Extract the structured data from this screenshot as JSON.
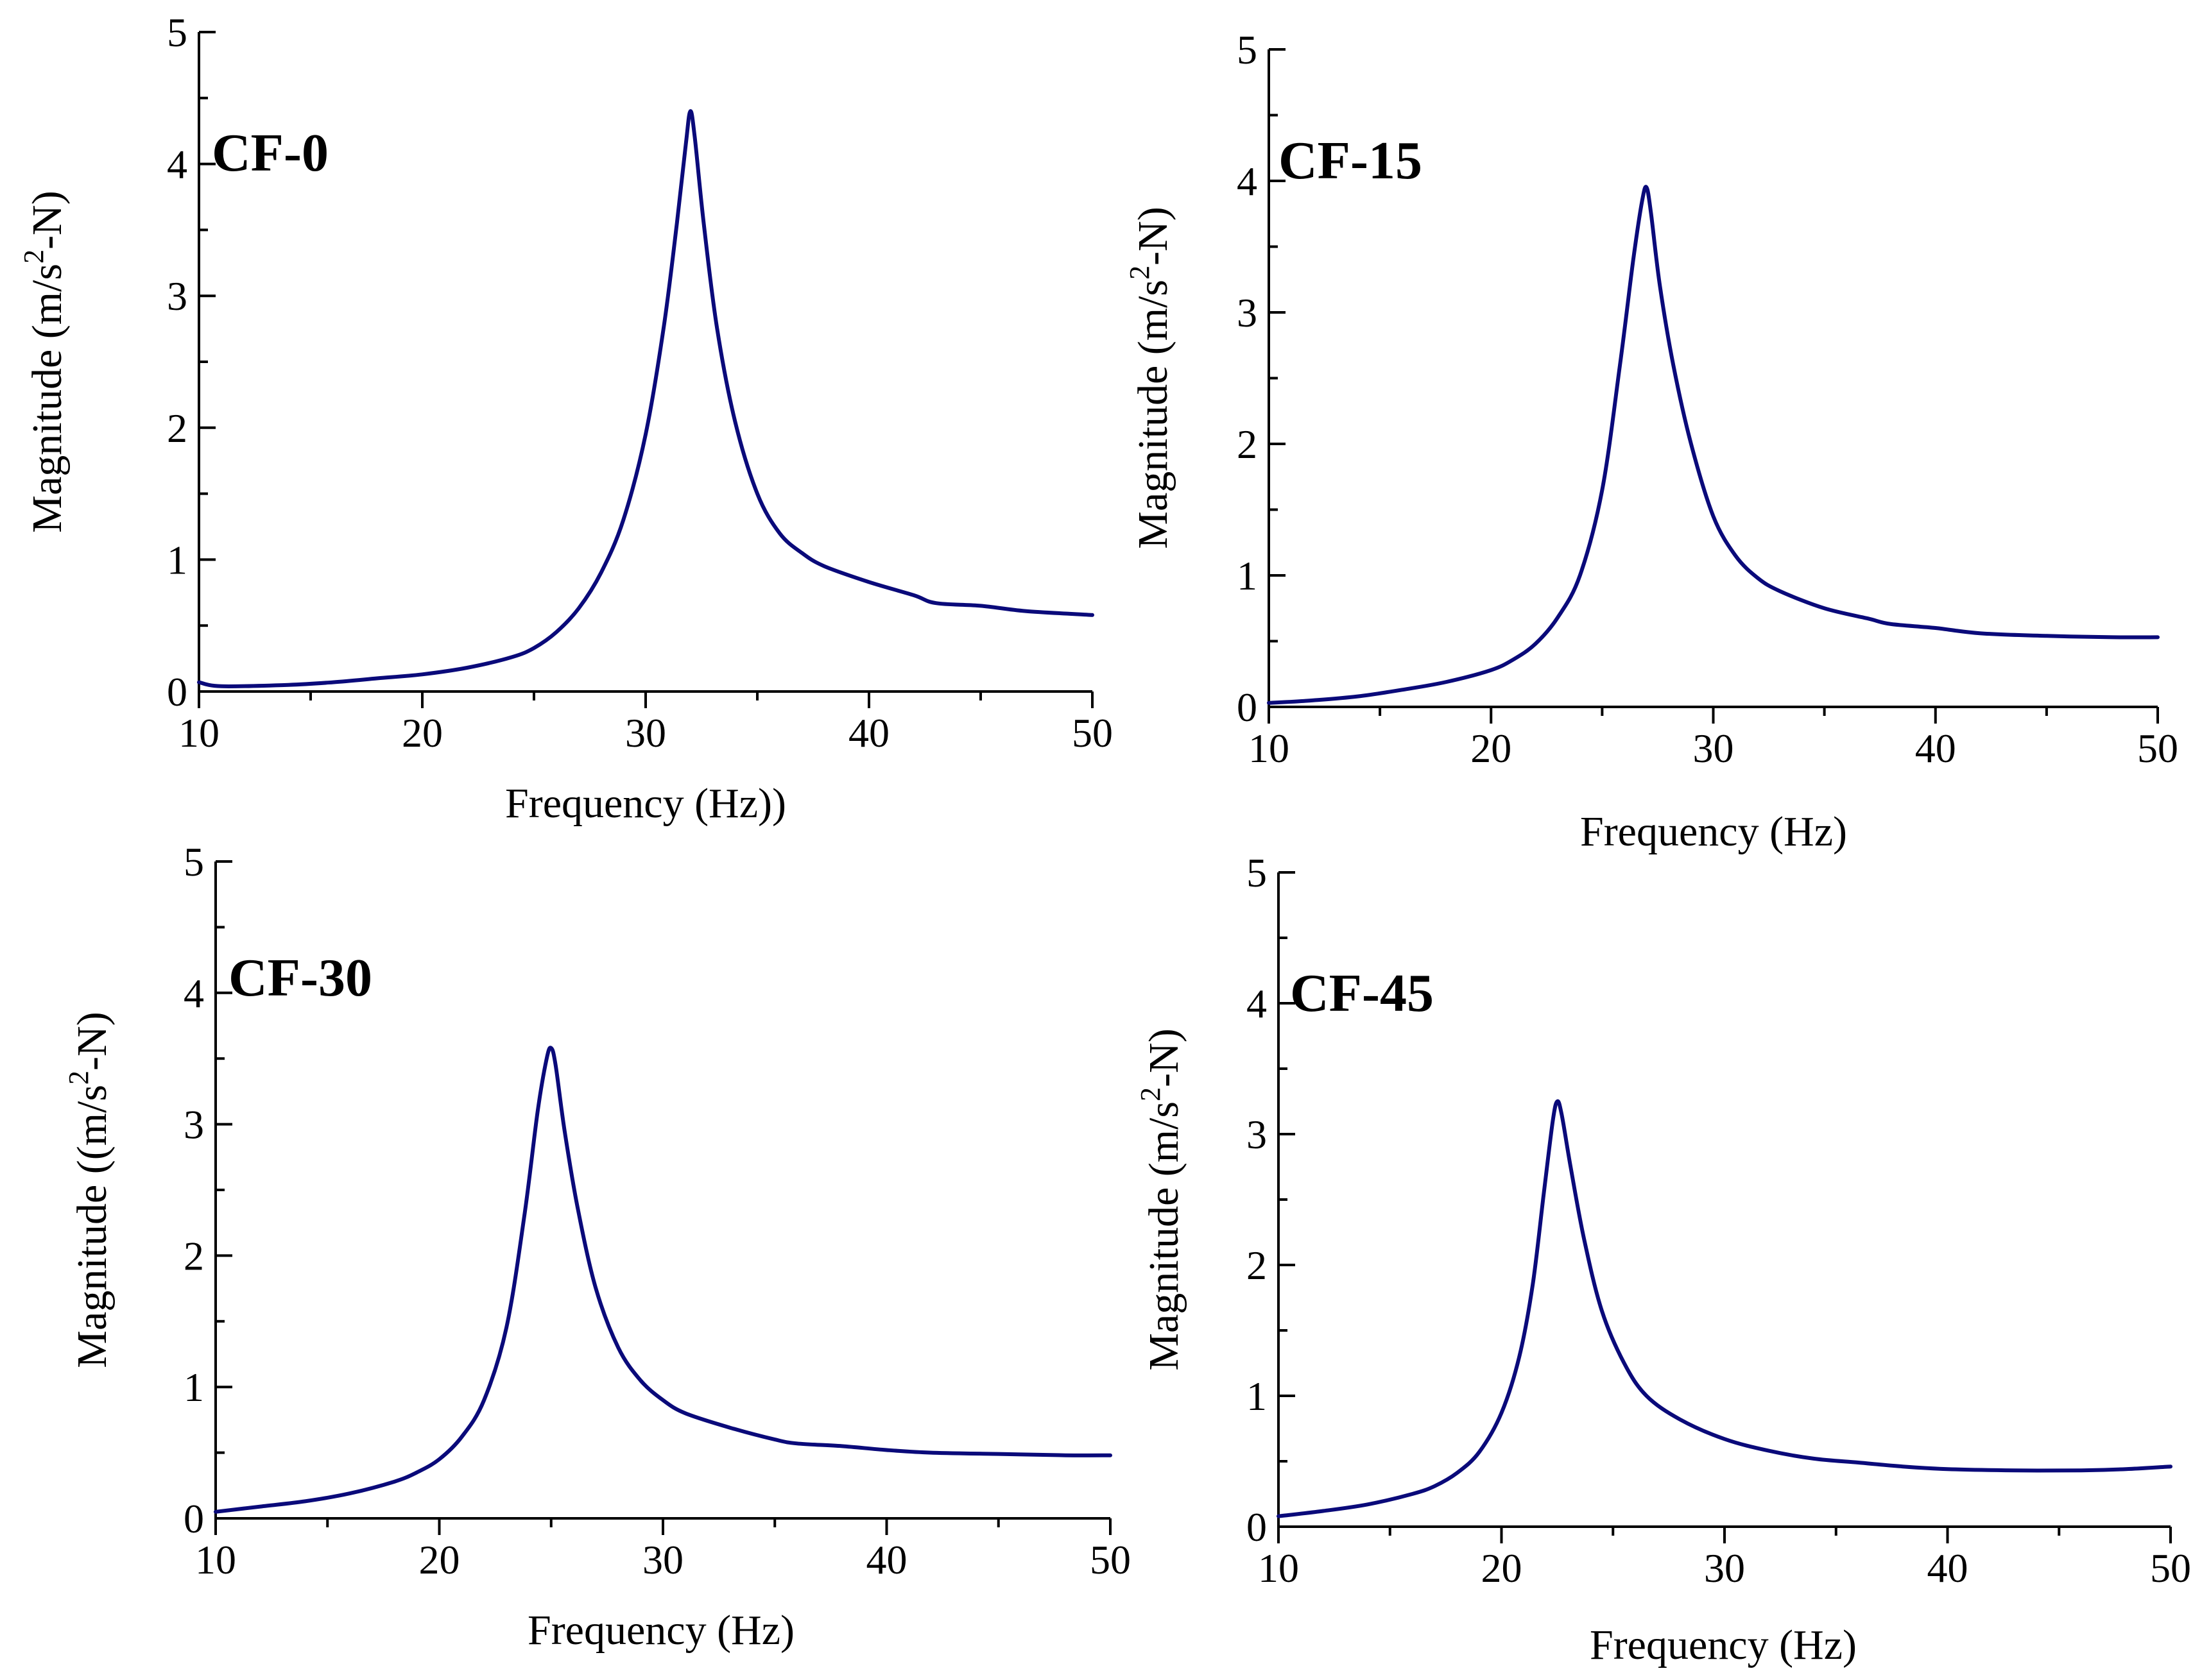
{
  "colors": {
    "curve": "#0a0a7a",
    "axis": "#000000"
  },
  "chart_data": [
    {
      "type": "line",
      "label": "CF-0",
      "xlabel": "Frequency (Hz))",
      "ylabel": "Magnitude (m/s2-N)",
      "ylabel_parts": {
        "before": "Magnitude (m/s",
        "sup": "2",
        "after": "-N)"
      },
      "xlim": [
        10,
        50
      ],
      "ylim": [
        0,
        5
      ],
      "xticks": [
        10,
        20,
        30,
        40,
        50
      ],
      "yticks": [
        0,
        1,
        2,
        3,
        4,
        5
      ],
      "series": [
        {
          "name": "CF-0",
          "x": [
            10,
            11,
            14,
            16,
            18,
            20,
            22,
            24,
            25,
            26,
            27,
            28,
            29,
            30,
            30.8,
            31.4,
            31.8,
            32,
            32.2,
            32.6,
            33.2,
            34,
            35,
            36,
            37,
            38,
            40,
            42,
            43,
            45,
            47,
            50
          ],
          "y": [
            0.07,
            0.04,
            0.05,
            0.07,
            0.1,
            0.13,
            0.18,
            0.26,
            0.33,
            0.45,
            0.63,
            0.9,
            1.3,
            1.95,
            2.75,
            3.55,
            4.15,
            4.4,
            4.2,
            3.55,
            2.75,
            2.05,
            1.5,
            1.2,
            1.05,
            0.95,
            0.83,
            0.73,
            0.67,
            0.65,
            0.61,
            0.58
          ]
        }
      ]
    },
    {
      "type": "line",
      "label": "CF-15",
      "xlabel": "Frequency (Hz)",
      "ylabel": "Magnitude (m/s2-N)",
      "ylabel_parts": {
        "before": "Magnitude (m/s",
        "sup": "2",
        "after": "-N)"
      },
      "xlim": [
        10,
        50
      ],
      "ylim": [
        0,
        5
      ],
      "xticks": [
        10,
        20,
        30,
        40,
        50
      ],
      "yticks": [
        0,
        1,
        2,
        3,
        4,
        5
      ],
      "series": [
        {
          "name": "CF-15",
          "x": [
            10,
            12,
            14,
            16,
            18,
            20,
            21,
            22,
            23,
            24,
            25,
            25.8,
            26.4,
            26.8,
            27,
            27.2,
            27.6,
            28.2,
            29,
            30,
            31,
            32,
            33,
            35,
            37,
            38,
            40,
            42,
            45,
            48,
            50
          ],
          "y": [
            0.03,
            0.05,
            0.08,
            0.13,
            0.19,
            0.28,
            0.36,
            0.48,
            0.68,
            1.0,
            1.65,
            2.6,
            3.4,
            3.85,
            3.95,
            3.75,
            3.2,
            2.6,
            2.0,
            1.45,
            1.15,
            0.98,
            0.88,
            0.75,
            0.67,
            0.63,
            0.6,
            0.56,
            0.54,
            0.53,
            0.53
          ]
        }
      ]
    },
    {
      "type": "line",
      "label": "CF-30",
      "xlabel": "Frequency (Hz)",
      "ylabel": "Magnitude ((m/s2-N)",
      "ylabel_parts": {
        "before": "Magnitude ((m/s",
        "sup": "2",
        "after": "-N)"
      },
      "xlim": [
        10,
        50
      ],
      "ylim": [
        0,
        5
      ],
      "xticks": [
        10,
        20,
        30,
        40,
        50
      ],
      "yticks": [
        0,
        1,
        2,
        3,
        4,
        5
      ],
      "series": [
        {
          "name": "CF-30",
          "x": [
            10,
            12,
            14,
            16,
            18,
            19,
            20,
            21,
            22,
            23,
            23.8,
            24.4,
            24.8,
            25,
            25.2,
            25.6,
            26.2,
            27,
            28,
            29,
            30,
            31,
            33,
            35,
            36,
            38,
            40,
            42,
            45,
            48,
            50
          ],
          "y": [
            0.05,
            0.09,
            0.13,
            0.19,
            0.28,
            0.35,
            0.45,
            0.62,
            0.9,
            1.45,
            2.3,
            3.1,
            3.5,
            3.58,
            3.45,
            2.95,
            2.35,
            1.75,
            1.3,
            1.05,
            0.9,
            0.8,
            0.69,
            0.6,
            0.57,
            0.55,
            0.52,
            0.5,
            0.49,
            0.48,
            0.48
          ]
        }
      ]
    },
    {
      "type": "line",
      "label": "CF-45",
      "xlabel": "Frequency (Hz)",
      "ylabel": "Magnitude (m/s2-N)",
      "ylabel_parts": {
        "before": "Magnitude (m/s",
        "sup": "2",
        "after": "-N)"
      },
      "xlim": [
        10,
        50
      ],
      "ylim": [
        0,
        5
      ],
      "xticks": [
        10,
        20,
        30,
        40,
        50
      ],
      "yticks": [
        0,
        1,
        2,
        3,
        4,
        5
      ],
      "series": [
        {
          "name": "CF-45",
          "x": [
            10,
            12,
            14,
            16,
            17,
            18,
            19,
            20,
            20.8,
            21.4,
            21.9,
            22.3,
            22.5,
            22.7,
            23.1,
            23.7,
            24.5,
            25.5,
            26.5,
            28,
            30,
            32,
            34,
            36,
            38,
            40,
            43,
            46,
            48,
            50
          ],
          "y": [
            0.08,
            0.12,
            0.17,
            0.25,
            0.31,
            0.41,
            0.57,
            0.87,
            1.3,
            1.85,
            2.55,
            3.1,
            3.25,
            3.15,
            2.75,
            2.2,
            1.65,
            1.25,
            1.0,
            0.82,
            0.67,
            0.58,
            0.52,
            0.49,
            0.46,
            0.44,
            0.43,
            0.43,
            0.44,
            0.46
          ]
        }
      ]
    }
  ]
}
